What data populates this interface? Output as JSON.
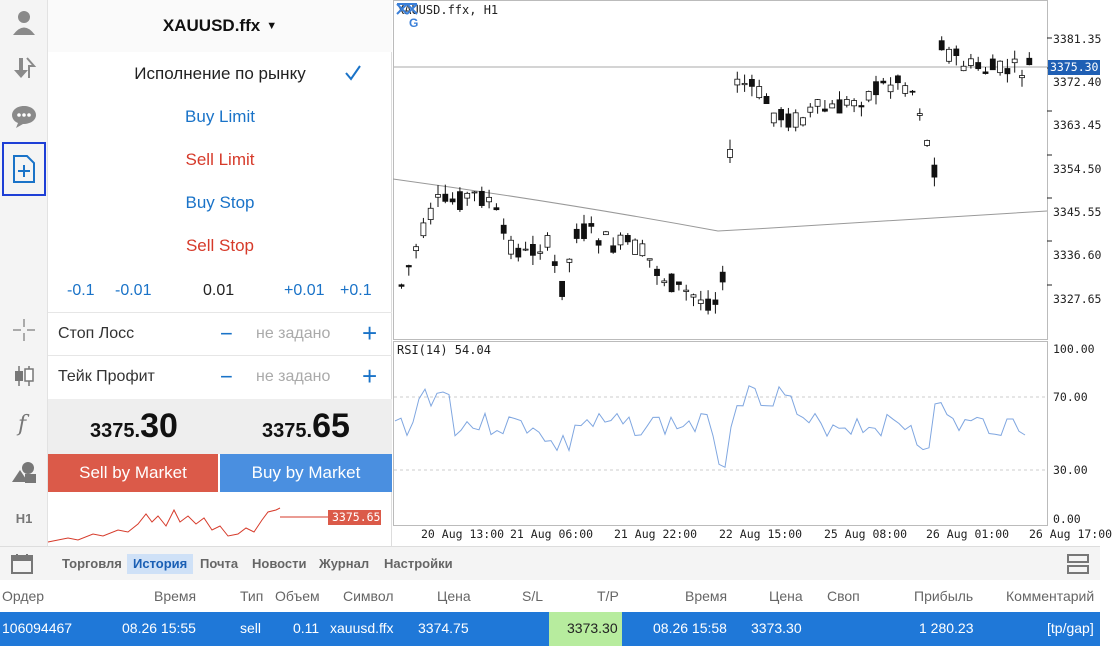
{
  "toolbar": {
    "icons": [
      "account-icon",
      "trade-icon",
      "chat-icon",
      "new-order-icon",
      "crosshair-icon",
      "chart-type-icon",
      "indicators-icon",
      "objects-icon"
    ],
    "timeframe": "H1"
  },
  "order": {
    "symbol": "XAUUSD.ffx",
    "exec_types": [
      "Исполнение по рынку",
      "Buy Limit",
      "Sell Limit",
      "Buy Stop",
      "Sell Stop"
    ],
    "volume": {
      "m01": "-0.1",
      "m001": "-0.01",
      "value": "0.01",
      "p001": "+0.01",
      "p01": "+0.1"
    },
    "stop_loss": {
      "label": "Стоп Лосс",
      "value": "не задано"
    },
    "take_profit": {
      "label": "Тейк Профит",
      "value": "не задано"
    },
    "bid": {
      "main": "3375.",
      "big": "30"
    },
    "ask": {
      "main": "3375.",
      "big": "65"
    },
    "sell_label": "Sell by Market",
    "buy_label": "Buy by Market",
    "mini_price": "3375.65",
    "sell_color": "#db5a49",
    "buy_color": "#4a8fe0"
  },
  "chart": {
    "title": "XAUUSD.ffx, H1",
    "rsi_title": "RSI(14) 54.04",
    "price_ticks": [
      "3381.35",
      "3372.40",
      "3363.45",
      "3354.50",
      "3345.55",
      "3336.60",
      "3327.65"
    ],
    "current_price": "3375.30",
    "rsi_ticks": [
      "100.00",
      "70.00",
      "30.00",
      "0.00"
    ],
    "time_ticks": [
      "20 Aug 13:00",
      "21 Aug 06:00",
      "21 Aug 22:00",
      "22 Aug 15:00",
      "25 Aug 08:00",
      "26 Aug 01:00",
      "26 Aug 17:00"
    ],
    "logo_letter": "G"
  },
  "tabs": [
    "Торговля",
    "История",
    "Почта",
    "Новости",
    "Журнал",
    "Настройки"
  ],
  "table": {
    "headers": [
      "Ордер",
      "Время",
      "Тип",
      "Объем",
      "Символ",
      "Цена",
      "S/L",
      "T/P",
      "Время",
      "Цена",
      "Своп",
      "Прибыль",
      "Комментарий"
    ],
    "row": {
      "order": "106094467",
      "time": "08.26 15:55",
      "type": "sell",
      "volume": "0.11",
      "symbol": "xauusd.ffx",
      "price": "3374.75",
      "tp": "3373.30",
      "close_time": "08.26 15:58",
      "close_price": "3373.30",
      "profit": "1 280.23",
      "comment": "[tp/gap]"
    }
  }
}
